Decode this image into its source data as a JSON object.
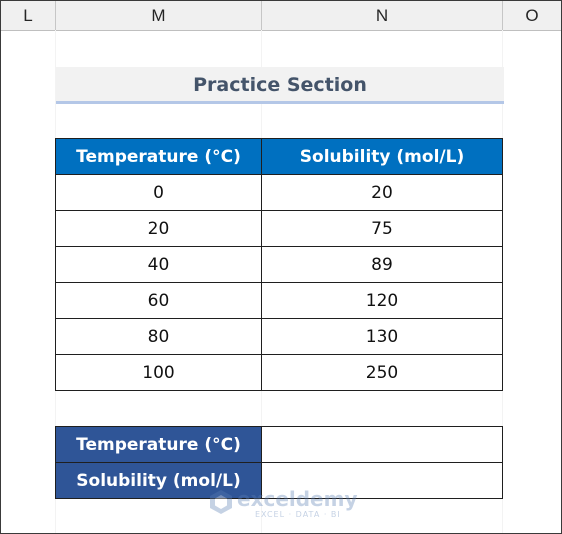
{
  "columns": [
    "L",
    "M",
    "N",
    "O"
  ],
  "practice_title": "Practice Section",
  "data_table": {
    "headers": [
      "Temperature (°C)",
      "Solubility (mol/L)"
    ],
    "rows": [
      [
        "0",
        "20"
      ],
      [
        "20",
        "75"
      ],
      [
        "40",
        "89"
      ],
      [
        "60",
        "120"
      ],
      [
        "80",
        "130"
      ],
      [
        "100",
        "250"
      ]
    ]
  },
  "input_table": {
    "temperature_label": "Temperature (°C)",
    "temperature_value": "",
    "solubility_label": "Solubility (mol/L)",
    "solubility_value": ""
  },
  "watermark": {
    "name": "exceldemy",
    "tagline": "EXCEL · DATA · BI"
  }
}
